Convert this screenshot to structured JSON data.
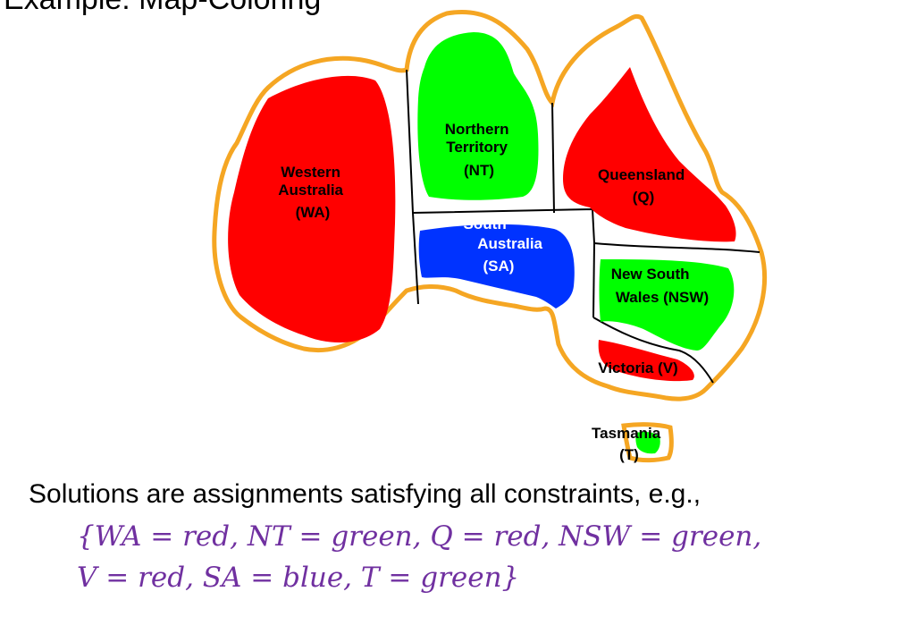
{
  "header": {
    "title": "Example: Map-Coloring"
  },
  "colors": {
    "red": "#ff0000",
    "green": "#00ff00",
    "blue": "#0033ff",
    "outline": "#f5a623",
    "border": "#000000",
    "formula": "#7030a0"
  },
  "regions": {
    "wa": {
      "lines": [
        "Western",
        "Australia",
        "(WA)"
      ],
      "color": "red"
    },
    "nt": {
      "lines": [
        "Northern",
        "Territory",
        "(NT)"
      ],
      "color": "green"
    },
    "q": {
      "lines": [
        "Queensland",
        "(Q)"
      ],
      "color": "red"
    },
    "sa": {
      "lines": [
        "South",
        "Australia",
        "(SA)"
      ],
      "color": "blue"
    },
    "nsw": {
      "lines": [
        "New South",
        "Wales (NSW)"
      ],
      "color": "green"
    },
    "v": {
      "lines": [
        "Victoria (V)"
      ],
      "color": "red"
    },
    "t": {
      "lines": [
        "Tasmania",
        "(T)"
      ],
      "color": "green"
    }
  },
  "text": {
    "caption": "Solutions are assignments satisfying all constraints, e.g.,",
    "formula_line1": "{WA = red, NT = green, Q = red, NSW = green,",
    "formula_line2": "V  = red, SA = blue, T  = green}"
  }
}
